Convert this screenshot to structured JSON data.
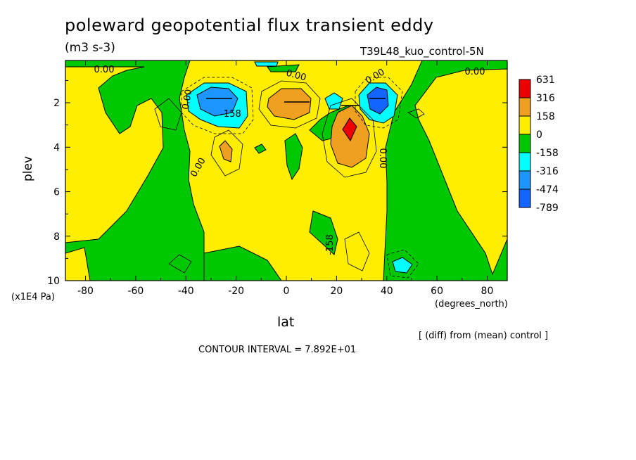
{
  "header": {
    "title": "poleward geopotential flux transient eddy",
    "units": "(m3 s-3)",
    "dataset": "T39L48_kuo_control-5N"
  },
  "footer": {
    "diff_note": "[ (diff) from (mean) control ]",
    "contour_interval": "CONTOUR INTERVAL = 7.892E+01"
  },
  "chart_data": {
    "type": "contour",
    "xlabel": "lat",
    "xunit": "(degrees_north)",
    "ylabel": "plev",
    "yunit": "(x1E4 Pa)",
    "xlim": [
      -88,
      88
    ],
    "ylim": [
      10,
      0.1
    ],
    "xticks": [
      -80,
      -60,
      -40,
      -20,
      0,
      20,
      40,
      60,
      80
    ],
    "yticks": [
      2,
      4,
      6,
      8,
      10
    ],
    "contour_interval": 78.92,
    "contour_labels": [
      "0.00",
      "0.00",
      "0.00",
      "0.00",
      "0.00",
      "0.00",
      "0.00",
      "-158"
    ],
    "legend": {
      "levels": [
        "631",
        "316",
        "158",
        "0",
        "-158",
        "-316",
        "-474",
        "-789"
      ],
      "colors": [
        "#ee0000",
        "#f0a020",
        "#ffee00",
        "#00c800",
        "#00ffff",
        "#1e96ff",
        "#1464ff"
      ]
    },
    "features": [
      {
        "label": "negative maximum",
        "lat": -28,
        "plev": 2.0,
        "color_class": "-474"
      },
      {
        "label": "positive maximum",
        "lat": 4,
        "plev": 2.0,
        "color_class": "158"
      },
      {
        "label": "positive maximum",
        "lat": 25,
        "plev": 3.2,
        "color_class": "631"
      },
      {
        "label": "negative maximum",
        "lat": 37,
        "plev": 1.9,
        "color_class": "-789"
      },
      {
        "label": "positive maximum",
        "lat": -22,
        "plev": 4.2,
        "color_class": "158"
      },
      {
        "label": "negative maximum",
        "lat": 46,
        "plev": 9.2,
        "color_class": "-316"
      }
    ]
  }
}
